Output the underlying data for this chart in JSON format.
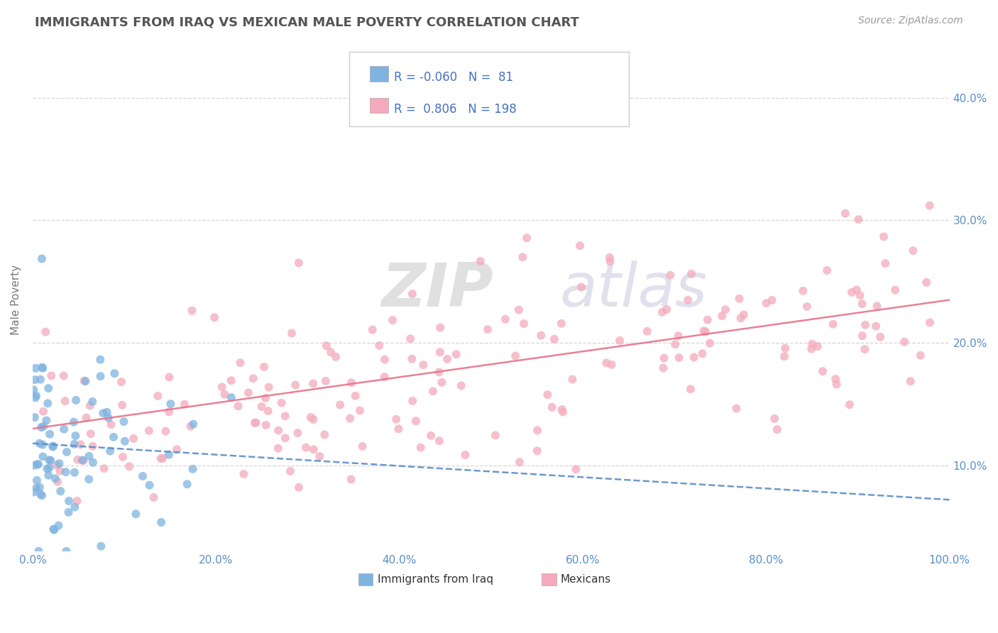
{
  "title": "IMMIGRANTS FROM IRAQ VS MEXICAN MALE POVERTY CORRELATION CHART",
  "source": "Source: ZipAtlas.com",
  "ylabel": "Male Poverty",
  "y_ticks": [
    0.1,
    0.2,
    0.3,
    0.4
  ],
  "y_tick_labels": [
    "10.0%",
    "20.0%",
    "30.0%",
    "40.0%"
  ],
  "x_lim": [
    0.0,
    1.0
  ],
  "y_lim": [
    0.03,
    0.44
  ],
  "x_ticks": [
    0.0,
    0.2,
    0.4,
    0.6,
    0.8,
    1.0
  ],
  "x_tick_labels": [
    "0.0%",
    "20.0%",
    "40.0%",
    "60.0%",
    "80.0%",
    "100.0%"
  ],
  "legend_label1": "Immigrants from Iraq",
  "legend_label2": "Mexicans",
  "color_iraq": "#7EB3E0",
  "color_mexico": "#F4AABC",
  "color_iraq_line": "#5B8EC7",
  "color_mexico_line": "#E8728A",
  "watermark_zip": "ZIP",
  "watermark_atlas": "atlas",
  "background_color": "#FFFFFF",
  "grid_color": "#CCCCCC",
  "title_color": "#555555",
  "legend_text_color": "#4472C4",
  "n_iraq": 81,
  "n_mexico": 198,
  "r_iraq": -0.06,
  "r_mexico": 0.806,
  "iraq_line_start": 0.118,
  "iraq_line_end": 0.072,
  "mexico_line_start": 0.13,
  "mexico_line_end": 0.235
}
